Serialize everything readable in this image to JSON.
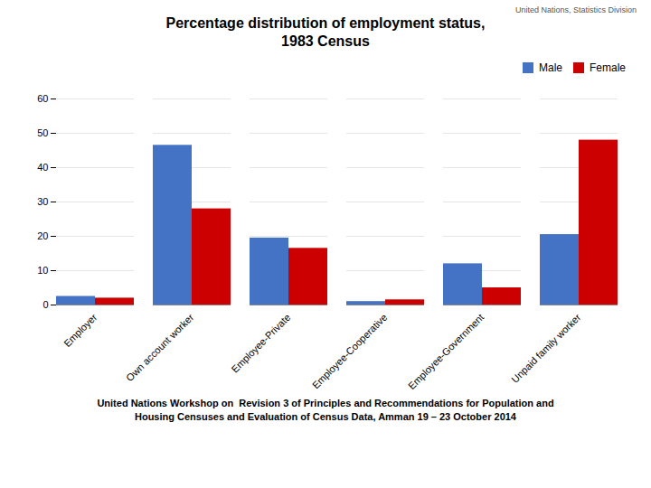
{
  "chart_data": {
    "type": "bar",
    "title": "Percentage distribution of employment status,\n1983 Census",
    "annotations": [
      "United Nations, Statistics Division"
    ],
    "caption": "United Nations Workshop on  Revision 3 of Principles and Recommendations for Population and\nHousing Censuses and Evaluation of Census Data, Amman 19 – 23 October 2014",
    "categories": [
      "Employer",
      "Own account worker",
      "Employee-Private",
      "Employee-Cooperative",
      "Employee-Government",
      "Unpaid family worker"
    ],
    "series": [
      {
        "name": "Male",
        "color": "#4472C4",
        "values": [
          2.5,
          46.5,
          19.5,
          1.0,
          12.0,
          20.5
        ]
      },
      {
        "name": "Female",
        "color": "#CC0000",
        "values": [
          2.0,
          28.0,
          16.5,
          1.5,
          5.0,
          48.0
        ]
      }
    ],
    "ylim": [
      0,
      60
    ],
    "yticks": [
      0,
      10,
      20,
      30,
      40,
      50,
      60
    ],
    "grid": true,
    "legend": "upper right"
  }
}
